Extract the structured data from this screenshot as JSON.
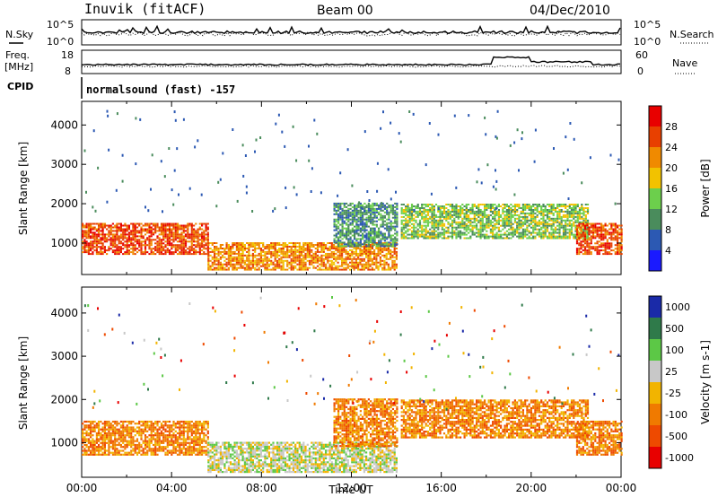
{
  "header": {
    "station": "Inuvik (fitACF)",
    "beam": "Beam 00",
    "date": "04/Dec/2010"
  },
  "top_panels": {
    "nsky_label": "N.Sky",
    "nsky_ticks": [
      "10^5",
      "10^0"
    ],
    "nsearch_label": "N.Search",
    "nsearch_ticks": [
      "10^5",
      "10^0"
    ],
    "freq_label": "Freq.",
    "freq_unit": "[MHz]",
    "freq_ticks": [
      "18",
      "8"
    ],
    "nave_label": "Nave",
    "nave_ticks": [
      "60",
      "0"
    ],
    "cpid_label": "CPID",
    "cpid_value": "normalsound (fast) -157"
  },
  "chart_data": [
    {
      "type": "heatmap",
      "name": "power",
      "ylabel": "Slant Range [km]",
      "yticks": [
        "1000",
        "2000",
        "3000",
        "4000"
      ],
      "ylim": [
        200,
        4600
      ],
      "xlim": [
        0,
        24
      ],
      "colorbar": {
        "label": "Power [dB]",
        "ticks": [
          "4",
          "8",
          "12",
          "16",
          "20",
          "24",
          "28"
        ],
        "colors": [
          "#1a1aff",
          "#2c59b3",
          "#4a8c5c",
          "#6ccf4c",
          "#f2c200",
          "#f08a00",
          "#e84000",
          "#e80000"
        ]
      },
      "regions": [
        {
          "t0": 0.0,
          "t1": 5.6,
          "r0": 700,
          "r1": 1500,
          "level": 28
        },
        {
          "t0": 5.6,
          "t1": 14.0,
          "r0": 300,
          "r1": 1000,
          "level": 24
        },
        {
          "t0": 11.2,
          "t1": 14.0,
          "r0": 900,
          "r1": 2000,
          "level": 12
        },
        {
          "t0": 14.2,
          "t1": 22.5,
          "r0": 1100,
          "r1": 2000,
          "level": 16
        },
        {
          "t0": 22.0,
          "t1": 24.0,
          "r0": 700,
          "r1": 1500,
          "level": 28
        }
      ]
    },
    {
      "type": "heatmap",
      "name": "velocity",
      "ylabel": "Slant Range [km]",
      "yticks": [
        "1000",
        "2000",
        "3000",
        "4000"
      ],
      "ylim": [
        200,
        4600
      ],
      "xlim": [
        0,
        24
      ],
      "xticks": [
        "00:00",
        "04:00",
        "08:00",
        "12:00",
        "16:00",
        "20:00",
        "00:00"
      ],
      "xlabel": "Time UT",
      "colorbar": {
        "label": "Velocity [m s-1]",
        "ticks": [
          "1000",
          "500",
          "100",
          "25",
          "-25",
          "-100",
          "-500",
          "-1000"
        ],
        "colors": [
          "#1a2aa8",
          "#2f7a4a",
          "#5cc846",
          "#c8c8c8",
          "#f2b400",
          "#f07a00",
          "#ee4a00",
          "#e80000"
        ]
      },
      "regions": [
        {
          "t0": 0.0,
          "t1": 5.6,
          "r0": 700,
          "r1": 1500,
          "level": -100
        },
        {
          "t0": 5.6,
          "t1": 14.0,
          "r0": 300,
          "r1": 1000,
          "level": 25
        },
        {
          "t0": 11.2,
          "t1": 14.0,
          "r0": 900,
          "r1": 2000,
          "level": -100
        },
        {
          "t0": 14.2,
          "t1": 22.5,
          "r0": 1100,
          "r1": 2000,
          "level": -100
        },
        {
          "t0": 22.0,
          "t1": 24.0,
          "r0": 700,
          "r1": 1500,
          "level": -100
        }
      ]
    }
  ]
}
